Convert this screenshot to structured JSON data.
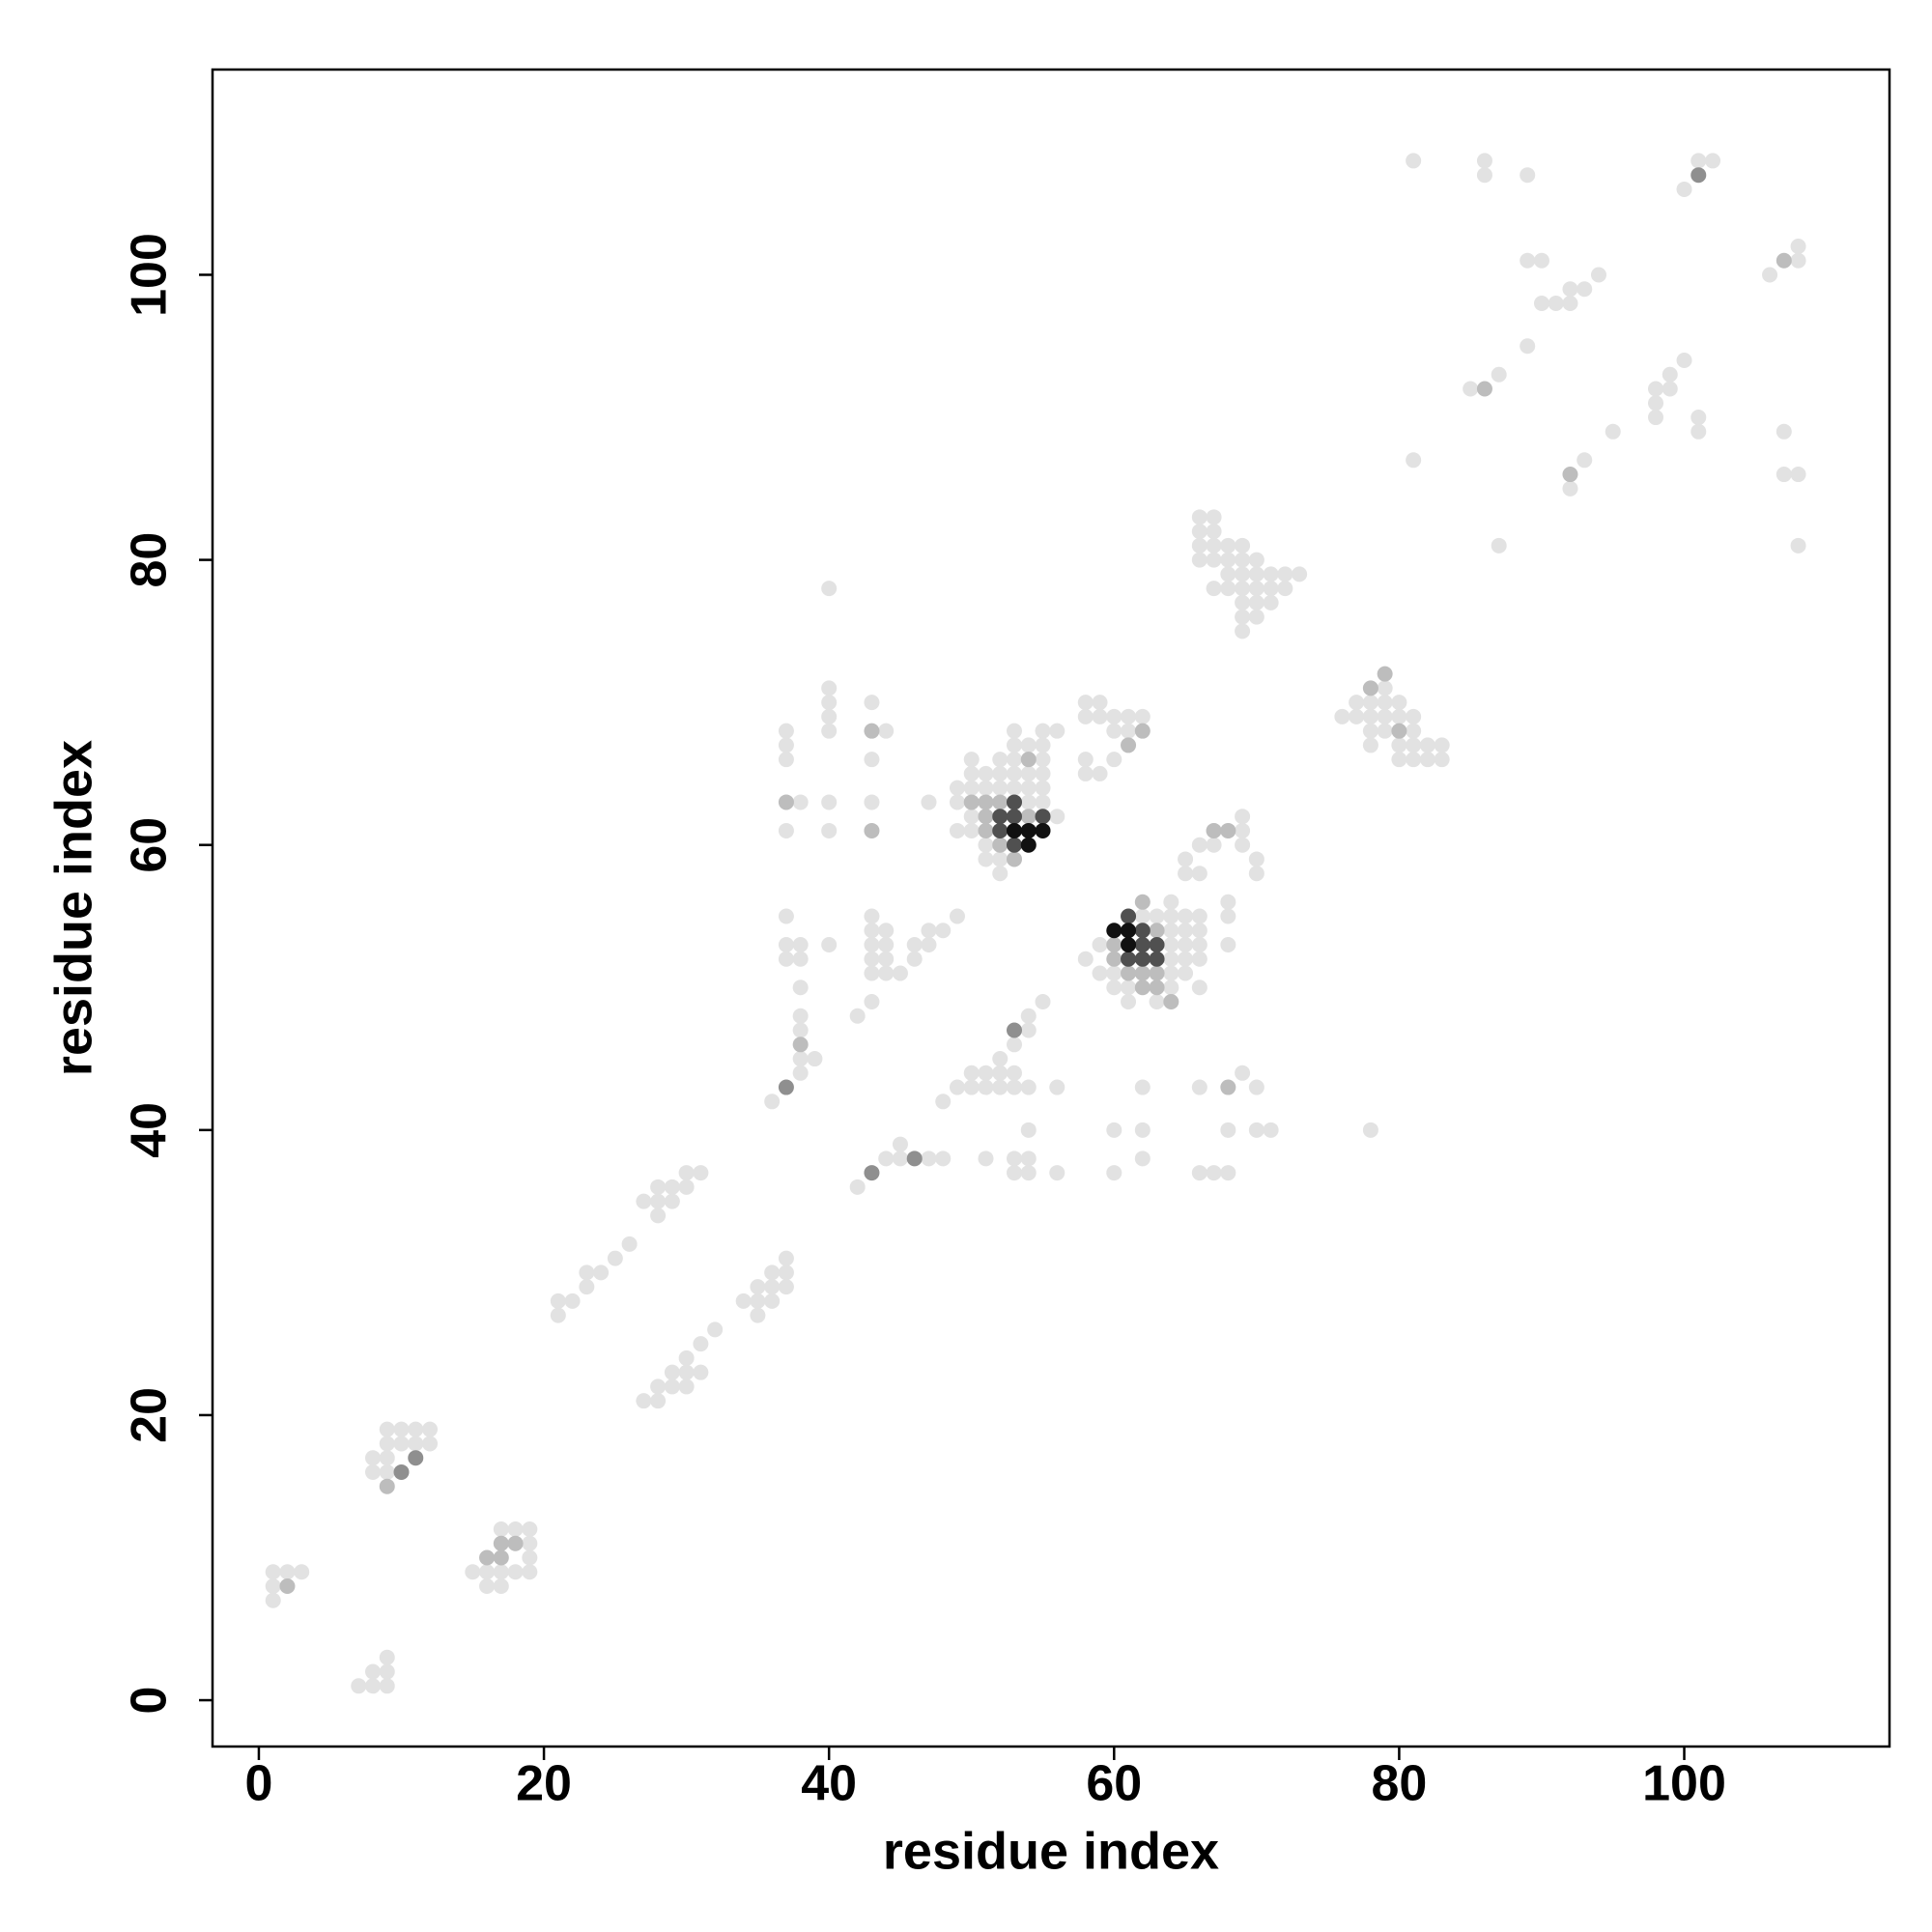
{
  "chart_data": {
    "type": "scatter",
    "x_label": "residue index",
    "y_label": "residue index",
    "xlim": [
      -3.25,
      114.4
    ],
    "ylim": [
      -3.25,
      114.4
    ],
    "xticks": [
      0,
      20,
      40,
      60,
      80,
      100
    ],
    "yticks": [
      0,
      20,
      40,
      60,
      80,
      100
    ],
    "series": [
      {
        "color": "#e2e2e2",
        "x": [
          7,
          8,
          8,
          9,
          9,
          9,
          1,
          1,
          1,
          2,
          3,
          8,
          8,
          9,
          9,
          9,
          9,
          10,
          10,
          11,
          11,
          12,
          12,
          15,
          16,
          16,
          17,
          17,
          17,
          18,
          18,
          18,
          19,
          19,
          19,
          19,
          21,
          21,
          22,
          23,
          23,
          24,
          25,
          26,
          27,
          28,
          28,
          28,
          29,
          29,
          30,
          30,
          31,
          27,
          28,
          28,
          29,
          29,
          30,
          30,
          30,
          31,
          31,
          32,
          34,
          35,
          35,
          35,
          36,
          36,
          36,
          37,
          37,
          37,
          36,
          38,
          38,
          38,
          38,
          38,
          39,
          37,
          37,
          37,
          38,
          38,
          40,
          37,
          38,
          37,
          37,
          37,
          40,
          40,
          40,
          40,
          40,
          40,
          40,
          43,
          43,
          44,
          43,
          42,
          43,
          43,
          43,
          43,
          43,
          43,
          44,
          44,
          44,
          44,
          45,
          46,
          46,
          47,
          47,
          48,
          49,
          47,
          42,
          44,
          45,
          45,
          47,
          48,
          51,
          53,
          53,
          54,
          54,
          54,
          56,
          48,
          49,
          50,
          50,
          51,
          51,
          52,
          52,
          52,
          53,
          53,
          53,
          54,
          54,
          54,
          55,
          56,
          49,
          49,
          49,
          50,
          50,
          50,
          50,
          50,
          51,
          51,
          51,
          51,
          52,
          52,
          52,
          52,
          52,
          53,
          53,
          53,
          53,
          53,
          54,
          54,
          54,
          54,
          55,
          55,
          55,
          55,
          55,
          55,
          56,
          56,
          58,
          58,
          59,
          58,
          58,
          59,
          59,
          60,
          60,
          60,
          61,
          61,
          62,
          58,
          59,
          59,
          60,
          60,
          61,
          61,
          62,
          63,
          63,
          64,
          64,
          64,
          64,
          64,
          64,
          65,
          65,
          66,
          60,
          60,
          62,
          62,
          62,
          66,
          67,
          68,
          66,
          68,
          69,
          70,
          71,
          70,
          78,
          64,
          64,
          65,
          65,
          65,
          66,
          66,
          66,
          66,
          68,
          68,
          68,
          65,
          65,
          66,
          66,
          67,
          67,
          68,
          69,
          69,
          69,
          70,
          70,
          66,
          66,
          66,
          66,
          67,
          67,
          67,
          67,
          67,
          68,
          68,
          68,
          68,
          69,
          69,
          69,
          69,
          69,
          69,
          69,
          70,
          70,
          70,
          70,
          70,
          71,
          71,
          71,
          72,
          72,
          73,
          76,
          77,
          77,
          78,
          78,
          78,
          78,
          79,
          79,
          79,
          79,
          80,
          80,
          80,
          80,
          81,
          81,
          81,
          81,
          82,
          82,
          83,
          83,
          81,
          81,
          85,
          86,
          86,
          87,
          87,
          89,
          89,
          89,
          90,
          90,
          91,
          92,
          92,
          92,
          93,
          93,
          94,
          95,
          98,
          98,
          98,
          99,
          99,
          100,
          100,
          101,
          101,
          101,
          102,
          106,
          107,
          107,
          108,
          108,
          108,
          108
        ],
        "y": [
          1,
          1,
          2,
          1,
          2,
          3,
          7,
          8,
          9,
          9,
          9,
          16,
          17,
          16,
          17,
          18,
          19,
          18,
          19,
          18,
          19,
          18,
          19,
          9,
          8,
          9,
          8,
          9,
          12,
          9,
          11,
          12,
          9,
          10,
          11,
          12,
          27,
          28,
          28,
          29,
          30,
          30,
          31,
          32,
          35,
          34,
          35,
          36,
          35,
          36,
          36,
          37,
          37,
          21,
          21,
          22,
          22,
          23,
          22,
          23,
          24,
          23,
          25,
          26,
          28,
          27,
          28,
          29,
          28,
          29,
          30,
          29,
          30,
          31,
          42,
          44,
          45,
          47,
          48,
          50,
          45,
          52,
          53,
          55,
          52,
          53,
          53,
          61,
          63,
          66,
          67,
          68,
          61,
          63,
          68,
          69,
          70,
          71,
          78,
          63,
          66,
          68,
          70,
          48,
          49,
          51,
          52,
          53,
          54,
          55,
          51,
          52,
          53,
          54,
          51,
          52,
          53,
          53,
          54,
          54,
          55,
          63,
          36,
          38,
          38,
          39,
          38,
          38,
          38,
          37,
          38,
          37,
          38,
          40,
          37,
          42,
          43,
          43,
          44,
          43,
          44,
          43,
          44,
          45,
          43,
          44,
          46,
          43,
          47,
          48,
          49,
          43,
          61,
          63,
          64,
          61,
          62,
          64,
          65,
          66,
          59,
          60,
          64,
          65,
          58,
          59,
          64,
          65,
          66,
          64,
          65,
          66,
          67,
          68,
          63,
          64,
          65,
          67,
          63,
          64,
          65,
          66,
          67,
          68,
          62,
          68,
          65,
          66,
          65,
          69,
          70,
          69,
          70,
          66,
          68,
          69,
          68,
          69,
          69,
          52,
          51,
          53,
          51,
          50,
          49,
          50,
          55,
          49,
          55,
          50,
          51,
          52,
          53,
          54,
          55,
          52,
          51,
          54,
          37,
          40,
          38,
          40,
          43,
          37,
          37,
          37,
          43,
          40,
          44,
          40,
          40,
          43,
          40,
          55,
          56,
          53,
          54,
          55,
          52,
          53,
          55,
          50,
          53,
          55,
          56,
          58,
          59,
          58,
          60,
          60,
          61,
          61,
          60,
          61,
          62,
          58,
          59,
          80,
          81,
          82,
          83,
          80,
          81,
          82,
          83,
          78,
          78,
          79,
          80,
          81,
          75,
          76,
          77,
          78,
          79,
          80,
          81,
          76,
          77,
          78,
          79,
          80,
          77,
          78,
          79,
          78,
          79,
          79,
          69,
          69,
          70,
          67,
          68,
          69,
          70,
          68,
          69,
          70,
          71,
          66,
          67,
          69,
          70,
          66,
          67,
          68,
          69,
          66,
          67,
          66,
          67,
          87,
          108,
          92,
          107,
          108,
          81,
          93,
          95,
          101,
          107,
          98,
          101,
          98,
          98,
          99,
          85,
          87,
          99,
          100,
          89,
          90,
          91,
          92,
          92,
          93,
          94,
          106,
          89,
          90,
          108,
          108,
          100,
          89,
          86,
          86,
          81,
          101,
          102
        ]
      },
      {
        "color": "#bdbdbd",
        "x": [
          2,
          9,
          17,
          16,
          17,
          18,
          37,
          38,
          43,
          43,
          50,
          51,
          51,
          51,
          52,
          52,
          53,
          54,
          54,
          60,
          60,
          61,
          62,
          62,
          62,
          63,
          63,
          63,
          64,
          61,
          62,
          68,
          78,
          79,
          80,
          68,
          67,
          86,
          92,
          107
        ],
        "y": [
          8,
          15,
          10,
          10,
          11,
          11,
          63,
          46,
          61,
          68,
          63,
          61,
          62,
          63,
          63,
          60,
          59,
          62,
          66,
          52,
          53,
          51,
          50,
          51,
          56,
          50,
          51,
          54,
          49,
          67,
          68,
          61,
          71,
          72,
          68,
          43,
          61,
          92,
          86,
          101
        ]
      },
      {
        "color": "#8f8f8f",
        "x": [
          10,
          11,
          37,
          43,
          46,
          53,
          101
        ],
        "y": [
          16,
          17,
          43,
          37,
          38,
          47,
          107
        ]
      },
      {
        "color": "#505050",
        "x": [
          52,
          52,
          53,
          53,
          55,
          53,
          61,
          62,
          62,
          62,
          63,
          63,
          61
        ],
        "y": [
          61,
          62,
          60,
          62,
          62,
          63,
          52,
          52,
          53,
          54,
          52,
          53,
          55
        ]
      },
      {
        "color": "#111111",
        "x": [
          53,
          54,
          54,
          55,
          60,
          61,
          61
        ],
        "y": [
          61,
          61,
          60,
          61,
          54,
          54,
          53
        ]
      }
    ]
  }
}
